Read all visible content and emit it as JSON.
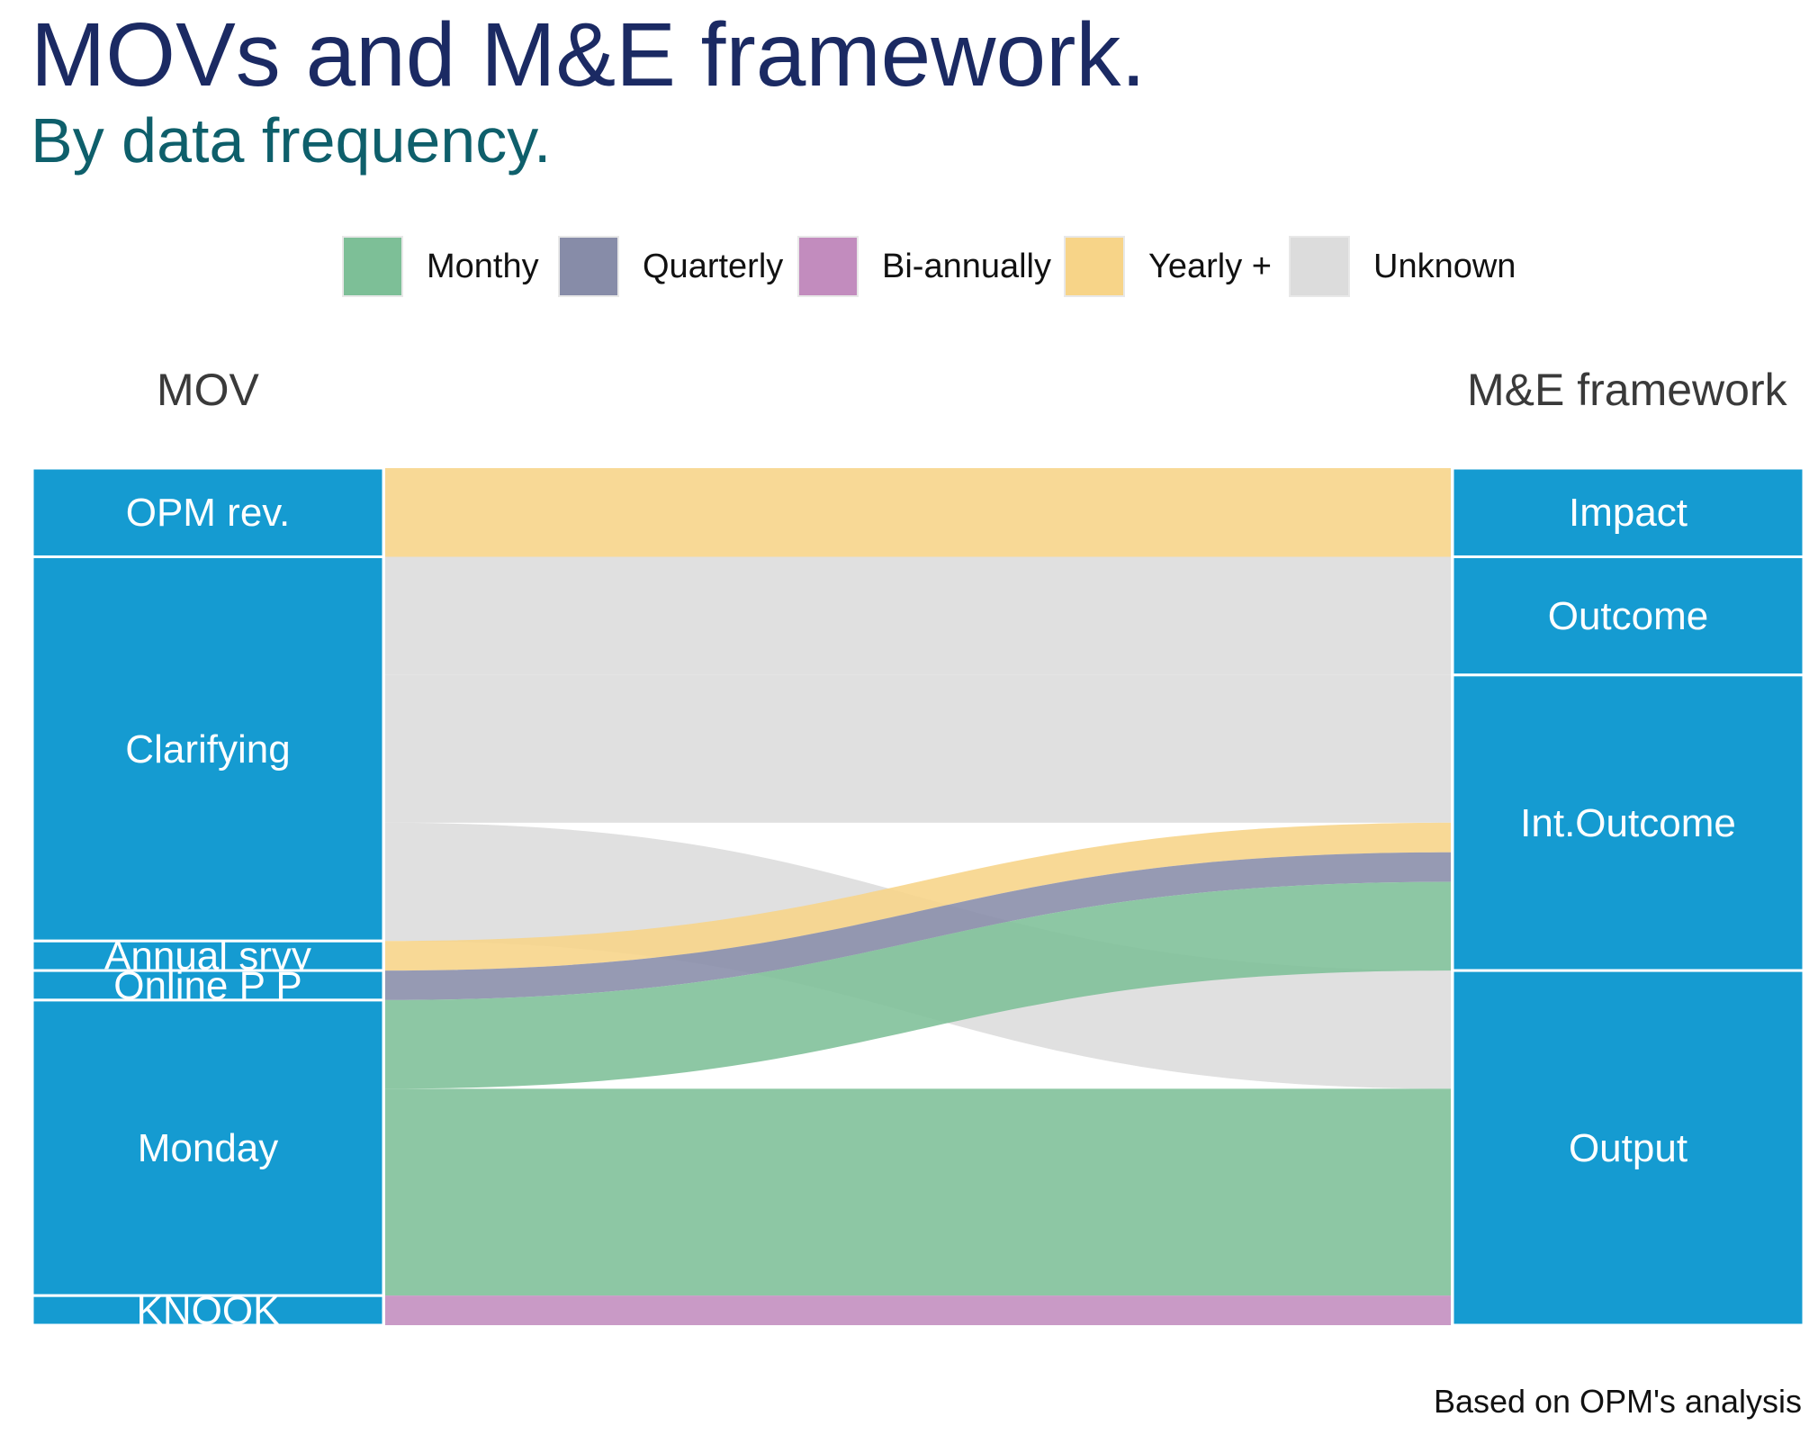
{
  "title": "MOVs and M&E framework.",
  "subtitle": "By data frequency.",
  "caption": "Based on OPM's analysis",
  "legend": [
    {
      "label": "Monthy",
      "color": "#7dbf97"
    },
    {
      "label": "Quarterly",
      "color": "#878ca8"
    },
    {
      "label": "Bi-annually",
      "color": "#c28cbe"
    },
    {
      "label": "Yearly +",
      "color": "#f7d488"
    },
    {
      "label": "Unknown",
      "color": "#dcdcdc"
    }
  ],
  "chart_data": {
    "type": "alluvial",
    "axes": [
      "MOV",
      "M&E framework"
    ],
    "node_color": "#159bd1",
    "colors": {
      "Monthy": "#7dbf97",
      "Quarterly": "#878ca8",
      "Bi-annually": "#c28cbe",
      "Yearly +": "#f7d488",
      "Unknown": "#dcdcdc"
    },
    "left_nodes": [
      "OPM rev.",
      "Clarifying",
      "Annual srvy",
      "Online P P",
      "Monday",
      "KNOOK"
    ],
    "right_nodes": [
      "Impact",
      "Outcome",
      "Int.Outcome",
      "Output"
    ],
    "flows": [
      {
        "from": "OPM rev.",
        "to": "Impact",
        "frequency": "Yearly +",
        "value": 3
      },
      {
        "from": "Clarifying",
        "to": "Outcome",
        "frequency": "Unknown",
        "value": 4
      },
      {
        "from": "Clarifying",
        "to": "Int.Outcome",
        "frequency": "Unknown",
        "value": 5
      },
      {
        "from": "Clarifying",
        "to": "Output",
        "frequency": "Unknown",
        "value": 4
      },
      {
        "from": "Annual srvy",
        "to": "Int.Outcome",
        "frequency": "Yearly +",
        "value": 1
      },
      {
        "from": "Online P P",
        "to": "Int.Outcome",
        "frequency": "Quarterly",
        "value": 1
      },
      {
        "from": "Monday",
        "to": "Int.Outcome",
        "frequency": "Monthy",
        "value": 3
      },
      {
        "from": "Monday",
        "to": "Output",
        "frequency": "Monthy",
        "value": 7
      },
      {
        "from": "KNOOK",
        "to": "Output",
        "frequency": "Bi-annually",
        "value": 1
      }
    ]
  }
}
